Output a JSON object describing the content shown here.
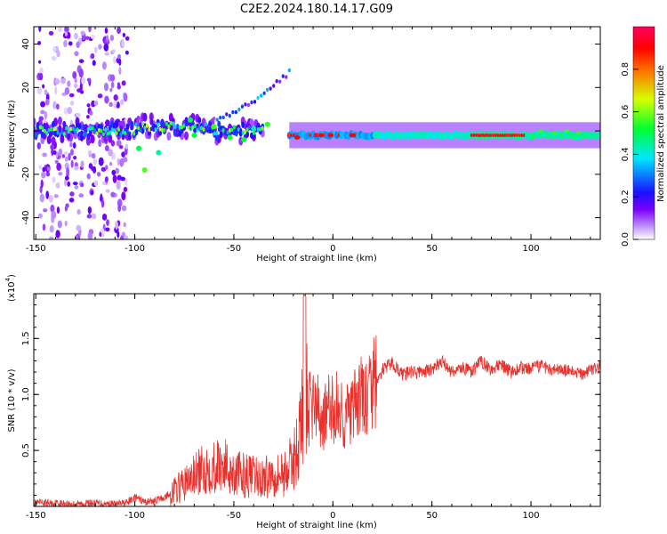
{
  "title": "C2E2.2024.180.14.17.G09",
  "chart_data": [
    {
      "type": "heatmap",
      "xlabel": "Height of straight line (km)",
      "ylabel": "Frequency (Hz)",
      "xlim": [
        -151,
        135
      ],
      "ylim": [
        -50,
        48
      ],
      "xticks": [
        -150,
        -100,
        -50,
        0,
        50,
        100
      ],
      "yticks": [
        -40,
        -20,
        0,
        20,
        40
      ],
      "colorbar": {
        "label": "Normalized spectral amplitude",
        "range": [
          0,
          1
        ],
        "ticks": [
          "0.0",
          "0.2",
          "0.4",
          "0.6",
          "0.8"
        ],
        "colors": [
          "#ffffff",
          "#7b00ff",
          "#0010ff",
          "#00e5ff",
          "#00ff30",
          "#e0ff00",
          "#ff6a00",
          "#ff0000",
          "#ff0060"
        ]
      },
      "features": [
        {
          "name": "noise scatter",
          "x": [
            -151,
            -104
          ],
          "y": [
            -50,
            48
          ],
          "amplitude": 0.15
        },
        {
          "name": "main trace",
          "x": [
            -151,
            -35
          ],
          "y_center": 0,
          "y_spread": 6,
          "amplitude": 0.45
        },
        {
          "name": "rising branch",
          "x": [
            -60,
            -22
          ],
          "y": [
            5,
            27
          ],
          "amplitude": 0.3
        },
        {
          "name": "steady line",
          "x": [
            -22,
            135
          ],
          "y_center": -2,
          "amplitude": 0.95
        }
      ]
    },
    {
      "type": "line",
      "xlabel": "Height of straight line (km)",
      "ylabel": "SNR (10 * v/v)",
      "y_scale_label": "(x10",
      "y_scale_exp": "4",
      "xlim": [
        -151,
        135
      ],
      "ylim": [
        0,
        1.9
      ],
      "xticks": [
        -150,
        -100,
        -50,
        0,
        50,
        100
      ],
      "yticks": [
        0.5,
        1.0,
        1.5
      ],
      "ytick_labels": [
        "0.5",
        "1.0",
        "1.5"
      ],
      "series": [
        {
          "color": "#e8312c",
          "x": [
            -151,
            -140,
            -130,
            -120,
            -110,
            -104,
            -100,
            -95,
            -90,
            -85,
            -80,
            -75,
            -70,
            -65,
            -60,
            -55,
            -50,
            -45,
            -40,
            -35,
            -30,
            -25,
            -20,
            -17,
            -14,
            -12,
            -10,
            -6,
            -2,
            2,
            6,
            10,
            14,
            18,
            20,
            22,
            25,
            30,
            35,
            40,
            45,
            50,
            55,
            60,
            65,
            70,
            75,
            80,
            85,
            90,
            95,
            100,
            105,
            110,
            115,
            120,
            125,
            130,
            135
          ],
          "values": [
            0.03,
            0.03,
            0.02,
            0.03,
            0.02,
            0.03,
            0.08,
            0.04,
            0.05,
            0.08,
            0.14,
            0.2,
            0.27,
            0.33,
            0.36,
            0.38,
            0.3,
            0.28,
            0.26,
            0.25,
            0.3,
            0.29,
            0.4,
            0.6,
            1.02,
            0.85,
            0.95,
            0.78,
            0.85,
            0.88,
            0.8,
            0.84,
            0.98,
            0.94,
            1.12,
            1.1,
            1.22,
            1.28,
            1.18,
            1.2,
            1.2,
            1.22,
            1.3,
            1.2,
            1.24,
            1.2,
            1.3,
            1.22,
            1.26,
            1.2,
            1.24,
            1.22,
            1.26,
            1.23,
            1.22,
            1.2,
            1.18,
            1.22,
            1.24
          ]
        }
      ]
    }
  ]
}
